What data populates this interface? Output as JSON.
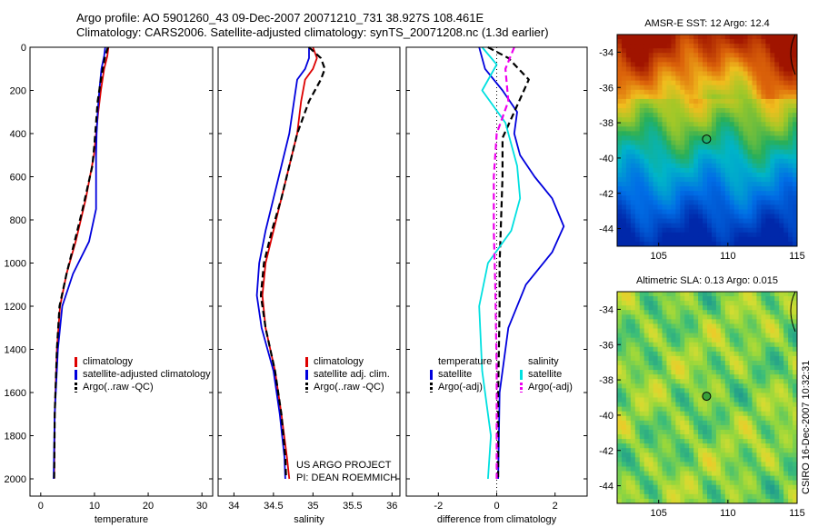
{
  "header": {
    "line1": "Argo profile: AO 5901260_43 09-Dec-2007 20071210_731 38.927S 108.461E",
    "line2": "Climatology: CARS2006. Satellite-adjusted climatology: synTS_20071208.nc (1.3d earlier)"
  },
  "colors": {
    "climatology": "#dd0000",
    "satellite": "#0000dd",
    "argo": "#000000",
    "salinity_satellite": "#00e0e0",
    "salinity_argo": "#ee00ee"
  },
  "chart_data": [
    {
      "type": "line",
      "panel": "temperature",
      "xlabel": "temperature",
      "ylabel": "",
      "xlim": [
        -2,
        32
      ],
      "ylim": [
        2080,
        0
      ],
      "xticks": [
        "0",
        "10",
        "20",
        "30"
      ],
      "xtick_values": [
        0,
        10,
        20,
        30
      ],
      "yticks": [
        "0",
        "200",
        "400",
        "600",
        "800",
        "1000",
        "1200",
        "1400",
        "1600",
        "1800",
        "2000"
      ],
      "ytick_values": [
        0,
        200,
        400,
        600,
        800,
        1000,
        1200,
        1400,
        1600,
        1800,
        2000
      ],
      "legend": [
        "climatology",
        "satellite-adjusted climatology",
        "Argo(..raw -QC)"
      ],
      "series": [
        {
          "name": "climatology",
          "style": "solid",
          "x": [
            12.6,
            12.4,
            11.8,
            11.2,
            10.7,
            10.3,
            9.9,
            8.4,
            6.5,
            4.8,
            3.6,
            3.0,
            2.6,
            2.5
          ],
          "y": [
            0,
            40,
            100,
            200,
            300,
            400,
            500,
            700,
            900,
            1050,
            1200,
            1400,
            1700,
            2000
          ]
        },
        {
          "name": "satellite-adjusted climatology",
          "style": "solid",
          "x": [
            12.0,
            11.8,
            11.3,
            10.9,
            10.6,
            10.4,
            10.3,
            10.3,
            9.0,
            6.0,
            4.0,
            3.2,
            2.6,
            2.4
          ],
          "y": [
            0,
            40,
            100,
            200,
            300,
            400,
            500,
            750,
            900,
            1050,
            1200,
            1400,
            1700,
            2000
          ]
        },
        {
          "name": "Argo(..raw -QC)",
          "style": "dashed",
          "x": [
            12.5,
            11.9,
            11.2,
            10.6,
            10.3,
            10.0,
            9.6,
            7.8,
            6.3,
            4.8,
            3.5,
            3.0,
            2.6,
            2.5
          ],
          "y": [
            0,
            50,
            150,
            250,
            350,
            450,
            550,
            750,
            900,
            1050,
            1200,
            1400,
            1700,
            2000
          ]
        }
      ]
    },
    {
      "type": "line",
      "panel": "salinity",
      "xlabel": "salinity",
      "ylabel": "",
      "xlim": [
        33.8,
        36.1
      ],
      "ylim": [
        2080,
        0
      ],
      "xticks": [
        "34",
        "34.5",
        "35",
        "35.5",
        "36"
      ],
      "xtick_values": [
        34,
        34.5,
        35,
        35.5,
        36
      ],
      "legend": [
        "climatology",
        "satellite adj. clim.",
        "Argo(..raw -QC)"
      ],
      "series": [
        {
          "name": "climatology",
          "style": "solid",
          "x": [
            35.0,
            35.05,
            35.0,
            34.9,
            34.85,
            34.8,
            34.7,
            34.6,
            34.5,
            34.4,
            34.36,
            34.4,
            34.52,
            34.6,
            34.67,
            34.7
          ],
          "y": [
            0,
            50,
            100,
            150,
            250,
            400,
            550,
            700,
            850,
            1000,
            1150,
            1300,
            1500,
            1700,
            1900,
            2000
          ]
        },
        {
          "name": "satellite adj. clim.",
          "style": "solid",
          "x": [
            34.95,
            34.95,
            34.9,
            34.8,
            34.76,
            34.7,
            34.6,
            34.5,
            34.4,
            34.32,
            34.29,
            34.35,
            34.5,
            34.58,
            34.64,
            34.65
          ],
          "y": [
            0,
            50,
            100,
            150,
            250,
            400,
            550,
            700,
            850,
            1000,
            1150,
            1300,
            1500,
            1700,
            1900,
            2000
          ]
        },
        {
          "name": "Argo(..raw -QC)",
          "style": "dashed",
          "x": [
            34.95,
            35.1,
            35.15,
            35.1,
            34.95,
            34.8,
            34.7,
            34.6,
            34.48,
            34.38,
            34.34,
            34.4,
            34.52,
            34.6,
            34.65,
            34.66
          ],
          "y": [
            0,
            50,
            100,
            150,
            250,
            400,
            550,
            700,
            850,
            1000,
            1150,
            1300,
            1500,
            1700,
            1900,
            2000
          ]
        }
      ]
    },
    {
      "type": "line",
      "panel": "difference",
      "xlabel": "difference from climatology",
      "ylabel": "",
      "xlim": [
        -3.1,
        3.1
      ],
      "ylim": [
        2080,
        0
      ],
      "xticks": [
        "-2",
        "0",
        "2"
      ],
      "xtick_values": [
        -2,
        0,
        2
      ],
      "legend_groups": [
        {
          "title": "temperature",
          "items": [
            "satellite",
            "Argo(-adj)"
          ]
        },
        {
          "title": "salinity",
          "items": [
            "satellite",
            "Argo(-adj)"
          ]
        }
      ],
      "series": [
        {
          "name": "temperature satellite",
          "style": "solid",
          "x": [
            -0.6,
            -0.4,
            0.2,
            0.7,
            0.6,
            0.8,
            1.3,
            1.9,
            2.3,
            1.9,
            1.0,
            0.4,
            0.1,
            0.05
          ],
          "y": [
            0,
            100,
            200,
            300,
            400,
            500,
            600,
            700,
            830,
            950,
            1100,
            1300,
            1600,
            2000
          ]
        },
        {
          "name": "temperature Argo(-adj)",
          "style": "dashed",
          "x": [
            -0.3,
            0.4,
            1.1,
            0.6,
            0.2,
            0.2,
            0.15,
            0.1,
            0.1,
            0.05,
            0.05
          ],
          "y": [
            0,
            50,
            150,
            300,
            420,
            600,
            800,
            1000,
            1200,
            1600,
            2000
          ]
        },
        {
          "name": "salinity satellite",
          "style": "solid",
          "x": [
            -0.5,
            0.0,
            -0.5,
            0.3,
            0.7,
            0.8,
            0.5,
            -0.3,
            -0.6,
            -0.5,
            -0.2,
            -0.3
          ],
          "y": [
            0,
            80,
            200,
            350,
            550,
            700,
            850,
            1000,
            1200,
            1500,
            1800,
            2000
          ]
        },
        {
          "name": "salinity Argo(-adj)",
          "style": "dashed",
          "x": [
            0.6,
            0.3,
            0.4,
            0.0,
            -0.1,
            -0.1,
            -0.05,
            0.0,
            0.0
          ],
          "y": [
            0,
            100,
            250,
            400,
            600,
            850,
            1100,
            1500,
            2000
          ]
        }
      ]
    },
    {
      "type": "heatmap",
      "panel": "sst-map",
      "title": "AMSR-E SST: 12 Argo: 12.4",
      "xlim": [
        102,
        115
      ],
      "ylim": [
        -45,
        -33
      ],
      "xticks": [
        "105",
        "110",
        "115"
      ],
      "xtick_values": [
        105,
        110,
        115
      ],
      "yticks": [
        "-34",
        "-36",
        "-38",
        "-40",
        "-42",
        "-44"
      ],
      "ytick_values": [
        -34,
        -36,
        -38,
        -40,
        -42,
        -44
      ],
      "argo_position": {
        "lon": 108.461,
        "lat": -38.927
      }
    },
    {
      "type": "heatmap",
      "panel": "sla-map",
      "title": "Altimetric SLA: 0.13 Argo: 0.015",
      "xlim": [
        102,
        115
      ],
      "ylim": [
        -45,
        -33
      ],
      "xticks": [
        "105",
        "110",
        "115"
      ],
      "xtick_values": [
        105,
        110,
        115
      ],
      "yticks": [
        "-34",
        "-36",
        "-38",
        "-40",
        "-42",
        "-44"
      ],
      "ytick_values": [
        -34,
        -36,
        -38,
        -40,
        -42,
        -44
      ],
      "argo_position": {
        "lon": 108.461,
        "lat": -38.927
      }
    }
  ],
  "notes": {
    "project": "US ARGO PROJECT",
    "pi": "PI: DEAN ROEMMICH",
    "stamp": "CSIRO 16-Dec-2007 10:32:31"
  }
}
